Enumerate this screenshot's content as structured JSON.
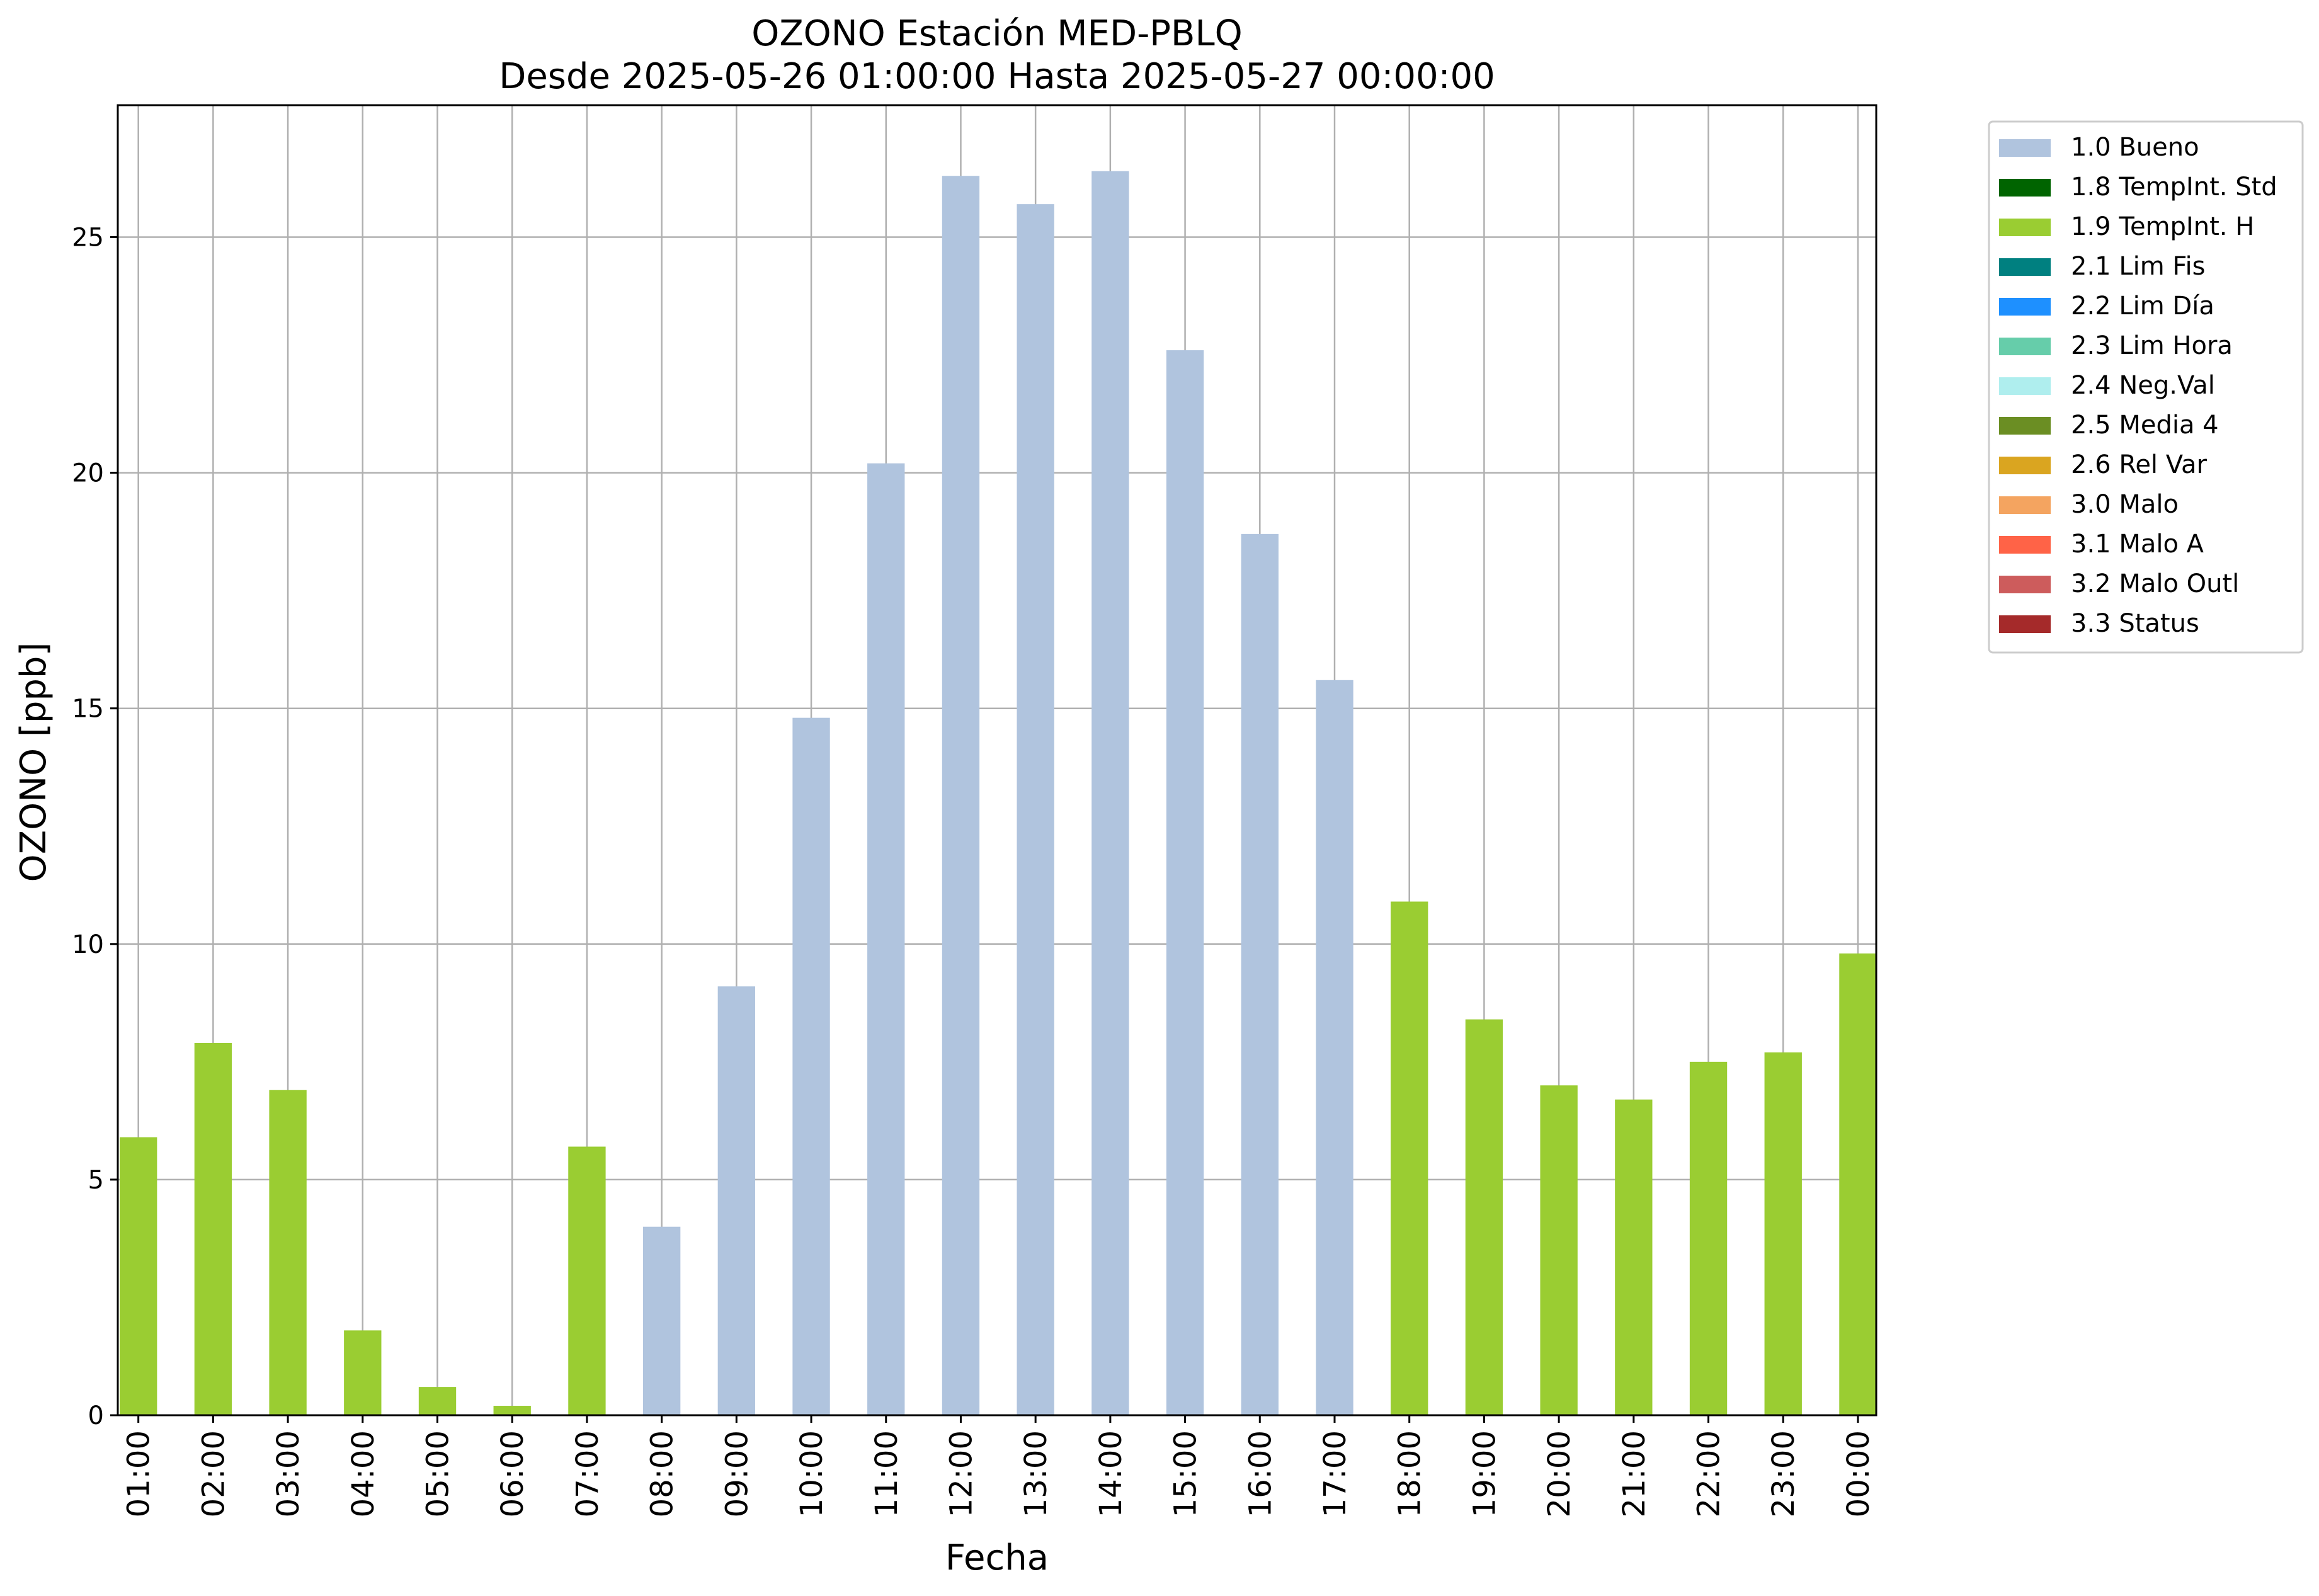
{
  "chart_data": {
    "type": "bar",
    "title": "OZONO Estación MED-PBLQ",
    "subtitle": "Desde 2025-05-26 01:00:00 Hasta 2025-05-27 00:00:00",
    "xlabel": "Fecha",
    "ylabel": "OZONO [ppb]",
    "ylim": [
      0,
      27.8
    ],
    "yticks": [
      0,
      5,
      10,
      15,
      20,
      25
    ],
    "grid": true,
    "legend_position": "outside-top-right",
    "categories": [
      "01:00",
      "02:00",
      "03:00",
      "04:00",
      "05:00",
      "06:00",
      "07:00",
      "08:00",
      "09:00",
      "10:00",
      "11:00",
      "12:00",
      "13:00",
      "14:00",
      "15:00",
      "16:00",
      "17:00",
      "18:00",
      "19:00",
      "20:00",
      "21:00",
      "22:00",
      "23:00",
      "00:00"
    ],
    "values": [
      5.9,
      7.9,
      6.9,
      1.8,
      0.6,
      0.2,
      5.7,
      4.0,
      9.1,
      14.8,
      20.2,
      26.3,
      25.7,
      26.4,
      22.6,
      18.7,
      15.6,
      10.9,
      8.4,
      7.0,
      6.7,
      7.5,
      7.7,
      9.8
    ],
    "flags": [
      "1.9 TempInt. H",
      "1.9 TempInt. H",
      "1.9 TempInt. H",
      "1.9 TempInt. H",
      "1.9 TempInt. H",
      "1.9 TempInt. H",
      "1.9 TempInt. H",
      "1.0 Bueno",
      "1.0 Bueno",
      "1.0 Bueno",
      "1.0 Bueno",
      "1.0 Bueno",
      "1.0 Bueno",
      "1.0 Bueno",
      "1.0 Bueno",
      "1.0 Bueno",
      "1.0 Bueno",
      "1.9 TempInt. H",
      "1.9 TempInt. H",
      "1.9 TempInt. H",
      "1.9 TempInt. H",
      "1.9 TempInt. H",
      "1.9 TempInt. H",
      "1.9 TempInt. H"
    ],
    "legend": [
      {
        "label": "1.0 Bueno",
        "color": "#b0c4de"
      },
      {
        "label": "1.8 TempInt. Std",
        "color": "#006400"
      },
      {
        "label": "1.9 TempInt. H",
        "color": "#9acd32"
      },
      {
        "label": "2.1 Lim Fis",
        "color": "#008080"
      },
      {
        "label": "2.2 Lim Día",
        "color": "#1e90ff"
      },
      {
        "label": "2.3 Lim Hora",
        "color": "#66cdaa"
      },
      {
        "label": "2.4 Neg.Val",
        "color": "#afeeee"
      },
      {
        "label": "2.5 Media 4",
        "color": "#6b8e23"
      },
      {
        "label": "2.6 Rel Var",
        "color": "#daa520"
      },
      {
        "label": "3.0 Malo",
        "color": "#f4a460"
      },
      {
        "label": "3.1 Malo A",
        "color": "#ff6347"
      },
      {
        "label": "3.2 Malo Outl",
        "color": "#cd5c5c"
      },
      {
        "label": "3.3 Status",
        "color": "#a52a2a"
      }
    ]
  }
}
